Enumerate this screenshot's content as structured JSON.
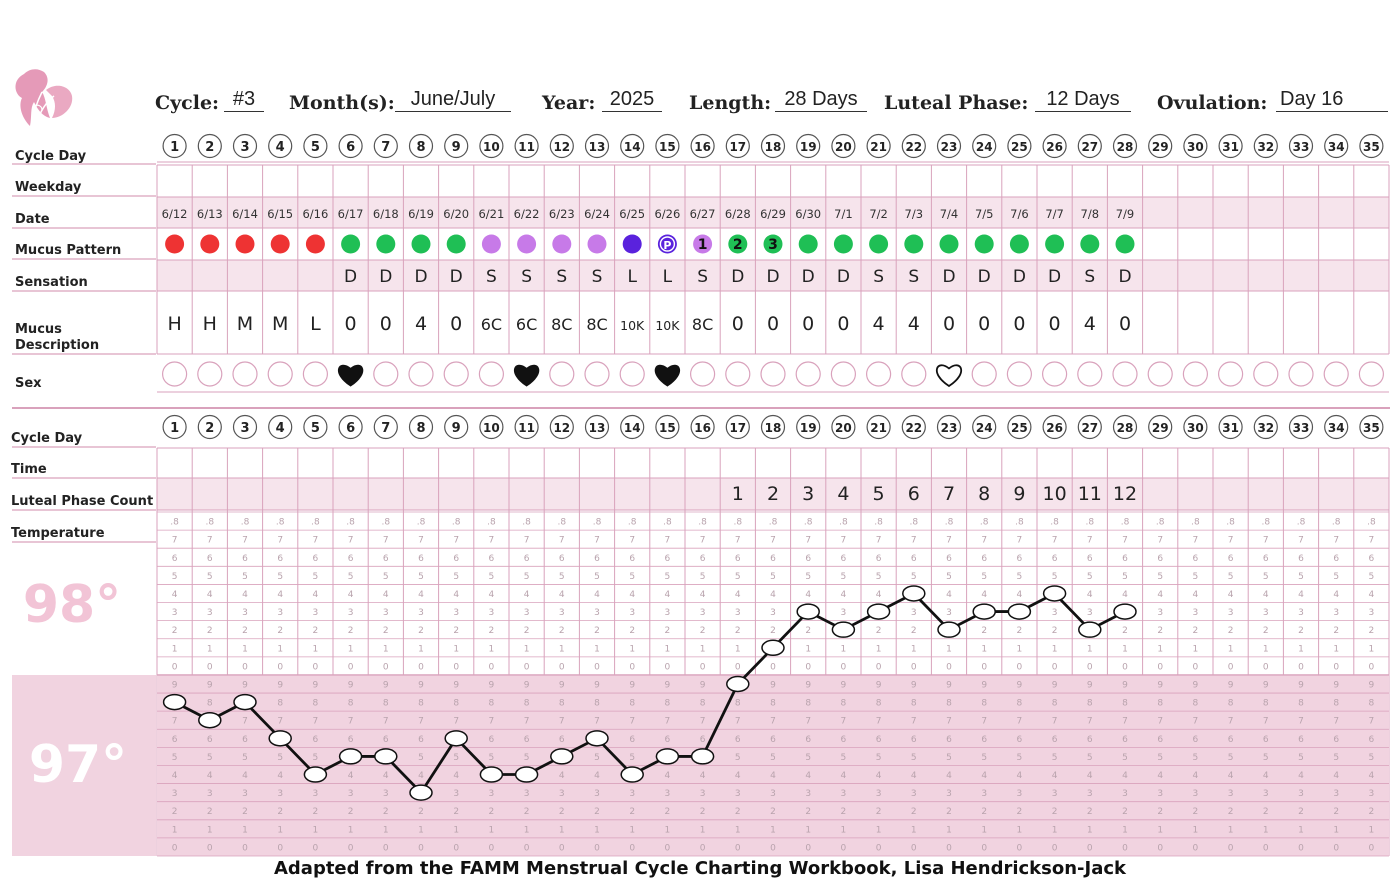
{
  "header": {
    "cycle_label": "Cycle:",
    "cycle_value": "#3",
    "month_label": "Month(s):",
    "month_value": "June/July",
    "year_label": "Year:",
    "year_value": "2025",
    "length_label": "Length:",
    "length_value": "28 Days",
    "luteal_label": "Luteal Phase:",
    "luteal_value": "12 Days",
    "ovulation_label": "Ovulation:",
    "ovulation_value": "Day 16"
  },
  "rows_top": {
    "cycle_day": "Cycle Day",
    "weekday": "Weekday",
    "date": "Date",
    "mucus_pattern": "Mucus Pattern",
    "sensation": "Sensation",
    "mucus_description": "Mucus Description",
    "sex": "Sex"
  },
  "rows_bottom": {
    "cycle_day": "Cycle Day",
    "time": "Time",
    "luteal_phase_count": "Luteal Phase Count",
    "temperature": "Temperature"
  },
  "temp_labels": {
    "upper": "98°",
    "lower": "97°"
  },
  "day_numbers": [
    "1",
    "2",
    "3",
    "4",
    "5",
    "6",
    "7",
    "8",
    "9",
    "10",
    "11",
    "12",
    "13",
    "14",
    "15",
    "16",
    "17",
    "18",
    "19",
    "20",
    "21",
    "22",
    "23",
    "24",
    "25",
    "26",
    "27",
    "28",
    "29",
    "30",
    "31",
    "32",
    "33",
    "34",
    "35"
  ],
  "dates": [
    "6/12",
    "6/13",
    "6/14",
    "6/15",
    "6/16",
    "6/17",
    "6/18",
    "6/19",
    "6/20",
    "6/21",
    "6/22",
    "6/23",
    "6/24",
    "6/25",
    "6/26",
    "6/27",
    "6/28",
    "6/29",
    "6/30",
    "7/1",
    "7/2",
    "7/3",
    "7/4",
    "7/5",
    "7/6",
    "7/7",
    "7/8",
    "7/9"
  ],
  "mucus_pattern": [
    {
      "color": "#ee3333",
      "label": ""
    },
    {
      "color": "#ee3333",
      "label": ""
    },
    {
      "color": "#ee3333",
      "label": ""
    },
    {
      "color": "#ee3333",
      "label": ""
    },
    {
      "color": "#ee3333",
      "label": ""
    },
    {
      "color": "#1fbf55",
      "label": ""
    },
    {
      "color": "#1fbf55",
      "label": ""
    },
    {
      "color": "#1fbf55",
      "label": ""
    },
    {
      "color": "#1fbf55",
      "label": ""
    },
    {
      "color": "#c77ae8",
      "label": ""
    },
    {
      "color": "#c77ae8",
      "label": ""
    },
    {
      "color": "#c77ae8",
      "label": ""
    },
    {
      "color": "#c77ae8",
      "label": ""
    },
    {
      "color": "#5a22dd",
      "label": ""
    },
    {
      "color": "#5a22dd",
      "label": "P"
    },
    {
      "color": "#c77ae8",
      "label": "1"
    },
    {
      "color": "#1fbf55",
      "label": "2"
    },
    {
      "color": "#1fbf55",
      "label": "3"
    },
    {
      "color": "#1fbf55",
      "label": ""
    },
    {
      "color": "#1fbf55",
      "label": ""
    },
    {
      "color": "#1fbf55",
      "label": ""
    },
    {
      "color": "#1fbf55",
      "label": ""
    },
    {
      "color": "#1fbf55",
      "label": ""
    },
    {
      "color": "#1fbf55",
      "label": ""
    },
    {
      "color": "#1fbf55",
      "label": ""
    },
    {
      "color": "#1fbf55",
      "label": ""
    },
    {
      "color": "#1fbf55",
      "label": ""
    },
    {
      "color": "#1fbf55",
      "label": ""
    }
  ],
  "sensation": [
    "",
    "",
    "",
    "",
    "",
    "D",
    "D",
    "D",
    "D",
    "S",
    "S",
    "S",
    "S",
    "L",
    "L",
    "S",
    "D",
    "D",
    "D",
    "D",
    "S",
    "S",
    "D",
    "D",
    "D",
    "D",
    "S",
    "D"
  ],
  "mucus_description": [
    "H",
    "H",
    "M",
    "M",
    "L",
    "0",
    "0",
    "4",
    "0",
    "6C",
    "6C",
    "8C",
    "8C",
    "10K",
    "10K",
    "8C",
    "0",
    "0",
    "0",
    "0",
    "4",
    "4",
    "0",
    "0",
    "0",
    "0",
    "4",
    "0"
  ],
  "sex": [
    {
      "day": 6,
      "type": "filled"
    },
    {
      "day": 11,
      "type": "filled"
    },
    {
      "day": 15,
      "type": "filled"
    },
    {
      "day": 23,
      "type": "outline"
    }
  ],
  "luteal_phase_count": [
    "",
    "",
    "",
    "",
    "",
    "",
    "",
    "",
    "",
    "",
    "",
    "",
    "",
    "",
    "",
    "",
    "1",
    "2",
    "3",
    "4",
    "5",
    "6",
    "7",
    "8",
    "9",
    "10",
    "11",
    "12"
  ],
  "grid_digits": [
    ".8",
    "7",
    "6",
    "5",
    "4",
    "3",
    "2",
    "1",
    "0",
    "9",
    "8",
    "7",
    "6",
    "5",
    "4",
    "3",
    "2",
    "1",
    "0"
  ],
  "chart_data": {
    "type": "line",
    "x": [
      1,
      2,
      3,
      4,
      5,
      6,
      7,
      8,
      9,
      10,
      11,
      12,
      13,
      14,
      15,
      16,
      17,
      18,
      19,
      20,
      21,
      22,
      23,
      24,
      25,
      26,
      27,
      28
    ],
    "series": [
      {
        "values": [
          96.8,
          96.7,
          96.8,
          96.6,
          96.4,
          96.5,
          96.5,
          96.3,
          96.6,
          96.4,
          96.4,
          96.5,
          96.6,
          96.4,
          96.5,
          96.5,
          96.9,
          97.1,
          97.3,
          97.2,
          97.3,
          97.4,
          97.2,
          97.3,
          97.3,
          97.4,
          97.2,
          97.3
        ]
      }
    ],
    "ylim": [
      96.0,
      97.8
    ],
    "colors": {
      "line": "#111111",
      "marker_fill": "#ffffff"
    }
  },
  "footer": "Adapted from the FAMM Menstrual Cycle Charting Workbook, Lisa Hendrickson-Jack",
  "colors": {
    "grid": "#d9a2bc",
    "shade": "#f6e4ec",
    "lower_shade": "#f1d3e0",
    "temp_label": "#f2c4d6",
    "accent": "#e06b97"
  }
}
